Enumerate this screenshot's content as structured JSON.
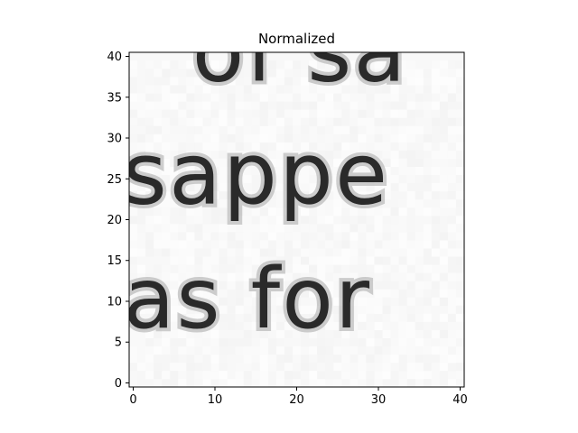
{
  "chart_data": {
    "type": "heatmap",
    "title": "Normalized",
    "subtitle": "",
    "xlabel": "",
    "ylabel": "",
    "xlim": [
      -0.5,
      40.5
    ],
    "ylim": [
      40.5,
      -0.5
    ],
    "x_ticks": [
      0,
      10,
      20,
      30,
      40
    ],
    "y_ticks": [
      0,
      5,
      10,
      15,
      20,
      25,
      30,
      35,
      40
    ],
    "x_tick_labels": [
      "0",
      "10",
      "20",
      "30",
      "40"
    ],
    "y_tick_labels": [
      "0",
      "5",
      "10",
      "15",
      "20",
      "25",
      "30",
      "35",
      "40"
    ],
    "grid": false,
    "colormap": "grayscale",
    "image_width": 41,
    "image_height": 41,
    "image_content_text_lines": [
      "as for",
      "sappe",
      "of sa"
    ],
    "highlight_box": {
      "x0": 15,
      "y0": 15,
      "x1": 24,
      "y1": 24,
      "color": "#d62728"
    }
  }
}
